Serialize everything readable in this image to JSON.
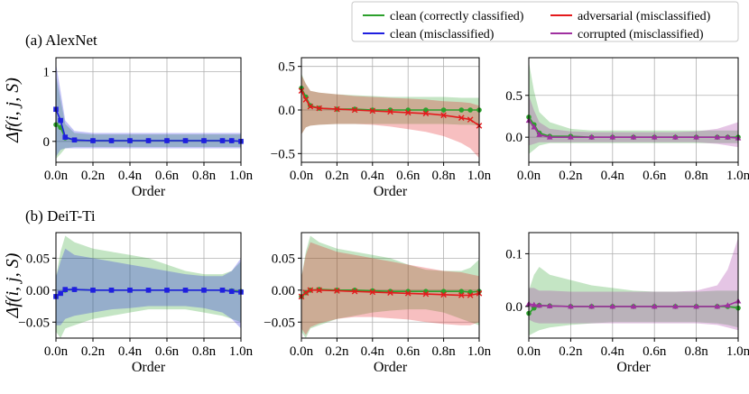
{
  "section_labels": [
    "(a) AlexNet",
    "(b) DeiT-Ti"
  ],
  "y_label": "Δf(i, j, S)",
  "legend": {
    "entries": [
      {
        "label": "clean (correctly classified)",
        "color": "#2ca02c"
      },
      {
        "label": "adversarial (misclassified)",
        "color": "#e41a1c"
      },
      {
        "label": "clean (misclassified)",
        "color": "#1f1fe0"
      },
      {
        "label": "corrupted (misclassified)",
        "color": "#a030a0"
      }
    ]
  },
  "colors": {
    "clean_correct": "#2ca02c",
    "adversarial": "#e41a1c",
    "clean_mis": "#1f1fe0",
    "corrupted": "#a030a0",
    "grid": "#b0b0b0"
  },
  "chart_data": [
    {
      "type": "line",
      "model": "AlexNet",
      "xlabel": "Order",
      "ylabel": "Δf(i, j, S)",
      "x": [
        0,
        0.025,
        0.05,
        0.1,
        0.2,
        0.3,
        0.4,
        0.5,
        0.6,
        0.7,
        0.8,
        0.9,
        0.95,
        1.0
      ],
      "xticks": [
        "0.0n",
        "0.2n",
        "0.4n",
        "0.6n",
        "0.8n",
        "1.0n"
      ],
      "ylim": [
        -0.3,
        1.2
      ],
      "yticks": [
        0,
        1
      ],
      "ytick_labels": [
        "0",
        "1"
      ],
      "series": [
        {
          "name": "clean (correctly classified)",
          "color_key": "clean_correct",
          "marker": "circle",
          "values": [
            0.24,
            0.2,
            0.05,
            0.02,
            0.01,
            0.01,
            0.01,
            0.01,
            0.01,
            0.01,
            0.01,
            0.01,
            0.01,
            0.0
          ],
          "band_upper": [
            0.95,
            0.6,
            0.25,
            0.12,
            0.1,
            0.1,
            0.1,
            0.1,
            0.1,
            0.1,
            0.1,
            0.1,
            0.1,
            0.1
          ],
          "band_lower": [
            -0.25,
            -0.18,
            -0.1,
            -0.08,
            -0.08,
            -0.08,
            -0.08,
            -0.08,
            -0.08,
            -0.08,
            -0.08,
            -0.08,
            -0.08,
            -0.08
          ]
        },
        {
          "name": "clean (misclassified)",
          "color_key": "clean_mis",
          "marker": "square",
          "values": [
            0.46,
            0.3,
            0.06,
            0.02,
            0.01,
            0.01,
            0.01,
            0.01,
            0.01,
            0.01,
            0.01,
            0.01,
            0.01,
            0.0
          ],
          "band_upper": [
            1.12,
            0.72,
            0.3,
            0.15,
            0.12,
            0.12,
            0.12,
            0.12,
            0.12,
            0.12,
            0.12,
            0.12,
            0.12,
            0.12
          ],
          "band_lower": [
            -0.22,
            -0.12,
            -0.1,
            -0.1,
            -0.1,
            -0.1,
            -0.1,
            -0.1,
            -0.1,
            -0.1,
            -0.1,
            -0.1,
            -0.1,
            -0.1
          ]
        }
      ]
    },
    {
      "type": "line",
      "model": "AlexNet",
      "xlabel": "Order",
      "ylabel": "",
      "x": [
        0,
        0.025,
        0.05,
        0.1,
        0.2,
        0.3,
        0.4,
        0.5,
        0.6,
        0.7,
        0.8,
        0.9,
        0.95,
        1.0
      ],
      "xticks": [
        "0.0n",
        "0.2n",
        "0.4n",
        "0.6n",
        "0.8n",
        "1.0n"
      ],
      "ylim": [
        -0.6,
        0.6
      ],
      "yticks": [
        -0.5,
        0.0,
        0.5
      ],
      "ytick_labels": [
        "−0.5",
        "0.0",
        "0.5"
      ],
      "series": [
        {
          "name": "clean (correctly classified)",
          "color_key": "clean_correct",
          "marker": "circle",
          "values": [
            0.25,
            0.15,
            0.05,
            0.02,
            0.01,
            0.01,
            0.0,
            0.0,
            0.0,
            0.0,
            0.0,
            0.0,
            0.0,
            0.0
          ],
          "band_upper": [
            0.42,
            0.3,
            0.22,
            0.2,
            0.18,
            0.17,
            0.16,
            0.15,
            0.15,
            0.15,
            0.15,
            0.14,
            0.14,
            0.14
          ],
          "band_lower": [
            -0.28,
            -0.2,
            -0.18,
            -0.17,
            -0.16,
            -0.16,
            -0.16,
            -0.16,
            -0.16,
            -0.16,
            -0.16,
            -0.17,
            -0.17,
            -0.18
          ]
        },
        {
          "name": "adversarial (misclassified)",
          "color_key": "adversarial",
          "marker": "x",
          "values": [
            0.22,
            0.12,
            0.04,
            0.02,
            0.01,
            0.0,
            -0.01,
            -0.02,
            -0.03,
            -0.04,
            -0.06,
            -0.09,
            -0.11,
            -0.18
          ],
          "band_upper": [
            0.4,
            0.3,
            0.22,
            0.2,
            0.18,
            0.16,
            0.15,
            0.14,
            0.13,
            0.12,
            0.1,
            0.09,
            0.08,
            0.05
          ],
          "band_lower": [
            -0.28,
            -0.2,
            -0.18,
            -0.17,
            -0.16,
            -0.16,
            -0.17,
            -0.19,
            -0.22,
            -0.25,
            -0.3,
            -0.38,
            -0.44,
            -0.55
          ]
        }
      ]
    },
    {
      "type": "line",
      "model": "AlexNet",
      "xlabel": "",
      "ylabel": "",
      "x": [
        0,
        0.025,
        0.05,
        0.1,
        0.2,
        0.3,
        0.4,
        0.5,
        0.6,
        0.7,
        0.8,
        0.9,
        0.95,
        1.0
      ],
      "xticks": [
        "0.0n",
        "0.2n",
        "0.4n",
        "0.6n",
        "0.8n",
        "1.0n"
      ],
      "ylim": [
        -0.3,
        0.95
      ],
      "yticks": [
        0.0,
        0.5
      ],
      "ytick_labels": [
        "0.0",
        "0.5"
      ],
      "series": [
        {
          "name": "clean (correctly classified)",
          "color_key": "clean_correct",
          "marker": "circle",
          "values": [
            0.24,
            0.15,
            0.05,
            0.01,
            0.01,
            0.0,
            0.0,
            0.0,
            0.0,
            0.0,
            0.0,
            0.0,
            0.0,
            0.0
          ],
          "band_upper": [
            0.9,
            0.55,
            0.3,
            0.18,
            0.1,
            0.08,
            0.08,
            0.08,
            0.08,
            0.08,
            0.08,
            0.08,
            0.08,
            0.08
          ],
          "band_lower": [
            -0.2,
            -0.15,
            -0.1,
            -0.07,
            -0.07,
            -0.07,
            -0.07,
            -0.07,
            -0.07,
            -0.07,
            -0.07,
            -0.07,
            -0.07,
            -0.07
          ]
        },
        {
          "name": "corrupted (misclassified)",
          "color_key": "corrupted",
          "marker": "triangle",
          "values": [
            0.2,
            0.12,
            0.03,
            0.0,
            0.0,
            0.0,
            0.0,
            0.0,
            0.0,
            0.0,
            0.0,
            0.0,
            0.0,
            -0.01
          ],
          "band_upper": [
            0.5,
            0.32,
            0.18,
            0.1,
            0.07,
            0.06,
            0.06,
            0.06,
            0.06,
            0.06,
            0.07,
            0.1,
            0.14,
            0.18
          ],
          "band_lower": [
            -0.1,
            -0.08,
            -0.06,
            -0.06,
            -0.06,
            -0.06,
            -0.06,
            -0.06,
            -0.06,
            -0.06,
            -0.06,
            -0.08,
            -0.1,
            -0.12
          ]
        }
      ]
    },
    {
      "type": "line",
      "model": "DeiT-Ti",
      "xlabel": "Order",
      "ylabel": "Δf(i, j, S)",
      "x": [
        0,
        0.025,
        0.05,
        0.1,
        0.2,
        0.3,
        0.4,
        0.5,
        0.6,
        0.7,
        0.8,
        0.9,
        0.95,
        1.0
      ],
      "xticks": [
        "0.0n",
        "0.2n",
        "0.4n",
        "0.6n",
        "0.8n",
        "1.0n"
      ],
      "ylim": [
        -0.075,
        0.09
      ],
      "yticks": [
        -0.05,
        0.0,
        0.05
      ],
      "ytick_labels": [
        "−0.05",
        "0.00",
        "0.05"
      ],
      "series": [
        {
          "name": "clean (correctly classified)",
          "color_key": "clean_correct",
          "marker": "circle",
          "values": [
            -0.01,
            -0.005,
            0.0,
            0.001,
            0.0,
            0.0,
            0.0,
            0.0,
            0.0,
            0.0,
            0.0,
            0.0,
            -0.001,
            -0.002
          ],
          "band_upper": [
            0.02,
            0.06,
            0.085,
            0.075,
            0.065,
            0.06,
            0.055,
            0.05,
            0.04,
            0.03,
            0.025,
            0.025,
            0.03,
            0.045
          ],
          "band_lower": [
            -0.065,
            -0.075,
            -0.06,
            -0.055,
            -0.045,
            -0.04,
            -0.035,
            -0.03,
            -0.03,
            -0.03,
            -0.035,
            -0.04,
            -0.045,
            -0.05
          ]
        },
        {
          "name": "clean (misclassified)",
          "color_key": "clean_mis",
          "marker": "square",
          "values": [
            -0.01,
            -0.005,
            0.001,
            0.001,
            0.0,
            0.0,
            0.0,
            0.0,
            0.0,
            0.0,
            0.0,
            0.0,
            -0.002,
            -0.003
          ],
          "band_upper": [
            0.02,
            0.045,
            0.065,
            0.055,
            0.05,
            0.045,
            0.04,
            0.035,
            0.03,
            0.025,
            0.022,
            0.022,
            0.03,
            0.05
          ],
          "band_lower": [
            -0.055,
            -0.055,
            -0.045,
            -0.04,
            -0.035,
            -0.03,
            -0.028,
            -0.025,
            -0.025,
            -0.025,
            -0.028,
            -0.035,
            -0.045,
            -0.06
          ]
        }
      ]
    },
    {
      "type": "line",
      "model": "DeiT-Ti",
      "xlabel": "Order",
      "ylabel": "",
      "x": [
        0,
        0.025,
        0.05,
        0.1,
        0.2,
        0.3,
        0.4,
        0.5,
        0.6,
        0.7,
        0.8,
        0.9,
        0.95,
        1.0
      ],
      "xticks": [
        "0.0n",
        "0.2n",
        "0.4n",
        "0.6n",
        "0.8n",
        "1.0n"
      ],
      "ylim": [
        -0.075,
        0.09
      ],
      "yticks": [
        -0.05,
        0.0,
        0.05
      ],
      "ytick_labels": [
        "−0.05",
        "0.00",
        "0.05"
      ],
      "series": [
        {
          "name": "clean (correctly classified)",
          "color_key": "clean_correct",
          "marker": "circle",
          "values": [
            -0.01,
            -0.004,
            0.0,
            0.001,
            0.0,
            0.0,
            -0.001,
            -0.002,
            -0.002,
            -0.002,
            -0.002,
            -0.002,
            -0.003,
            -0.002
          ],
          "band_upper": [
            0.02,
            0.06,
            0.085,
            0.075,
            0.065,
            0.06,
            0.055,
            0.05,
            0.04,
            0.032,
            0.03,
            0.03,
            0.035,
            0.048
          ],
          "band_lower": [
            -0.065,
            -0.075,
            -0.06,
            -0.055,
            -0.045,
            -0.04,
            -0.035,
            -0.032,
            -0.03,
            -0.03,
            -0.035,
            -0.045,
            -0.05,
            -0.055
          ]
        },
        {
          "name": "adversarial (misclassified)",
          "color_key": "adversarial",
          "marker": "x",
          "values": [
            -0.01,
            -0.004,
            0.0,
            0.0,
            -0.001,
            -0.002,
            -0.003,
            -0.004,
            -0.005,
            -0.006,
            -0.007,
            -0.008,
            -0.008,
            -0.005
          ],
          "band_upper": [
            0.02,
            0.055,
            0.075,
            0.07,
            0.06,
            0.055,
            0.05,
            0.045,
            0.04,
            0.035,
            0.03,
            0.028,
            0.025,
            0.022
          ],
          "band_lower": [
            -0.06,
            -0.07,
            -0.058,
            -0.052,
            -0.045,
            -0.042,
            -0.042,
            -0.044,
            -0.046,
            -0.05,
            -0.053,
            -0.055,
            -0.055,
            -0.05
          ]
        }
      ]
    },
    {
      "type": "line",
      "model": "DeiT-Ti",
      "xlabel": "Order",
      "ylabel": "",
      "x": [
        0,
        0.025,
        0.05,
        0.1,
        0.2,
        0.3,
        0.4,
        0.5,
        0.6,
        0.7,
        0.8,
        0.9,
        0.95,
        1.0
      ],
      "xticks": [
        "0.0n",
        "0.2n",
        "0.4n",
        "0.6n",
        "0.8n",
        "1.0n"
      ],
      "ylim": [
        -0.06,
        0.14
      ],
      "yticks": [
        0.0,
        0.1
      ],
      "ytick_labels": [
        "0.0",
        "0.1"
      ],
      "series": [
        {
          "name": "clean (correctly classified)",
          "color_key": "clean_correct",
          "marker": "circle",
          "values": [
            -0.013,
            -0.003,
            0.002,
            0.001,
            0.0,
            0.0,
            0.0,
            0.0,
            0.0,
            0.0,
            0.0,
            0.0,
            0.0,
            -0.003
          ],
          "band_upper": [
            0.03,
            0.06,
            0.075,
            0.06,
            0.05,
            0.04,
            0.035,
            0.03,
            0.028,
            0.028,
            0.028,
            0.03,
            0.03,
            0.03
          ],
          "band_lower": [
            -0.055,
            -0.05,
            -0.045,
            -0.04,
            -0.035,
            -0.032,
            -0.03,
            -0.03,
            -0.03,
            -0.03,
            -0.03,
            -0.032,
            -0.035,
            -0.04
          ]
        },
        {
          "name": "corrupted (misclassified)",
          "color_key": "corrupted",
          "marker": "triangle",
          "values": [
            0.005,
            0.003,
            0.002,
            0.001,
            0.0,
            0.0,
            0.0,
            0.0,
            0.0,
            0.0,
            0.0,
            0.0,
            0.002,
            0.01
          ],
          "band_upper": [
            0.035,
            0.035,
            0.03,
            0.03,
            0.028,
            0.028,
            0.028,
            0.028,
            0.028,
            0.028,
            0.03,
            0.04,
            0.07,
            0.13
          ],
          "band_lower": [
            -0.025,
            -0.03,
            -0.032,
            -0.032,
            -0.032,
            -0.032,
            -0.032,
            -0.032,
            -0.032,
            -0.032,
            -0.032,
            -0.035,
            -0.04,
            -0.045
          ]
        }
      ]
    }
  ]
}
